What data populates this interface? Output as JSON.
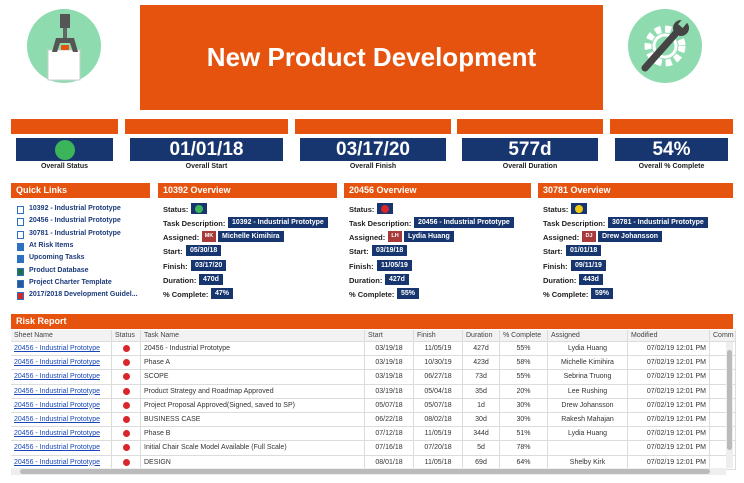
{
  "header": {
    "title": "New Product Development"
  },
  "metrics": [
    {
      "label": "Overall Status",
      "status_color": "#3cb45a"
    },
    {
      "value": "01/01/18",
      "label": "Overall Start"
    },
    {
      "value": "03/17/20",
      "label": "Overall Finish"
    },
    {
      "value": "577d",
      "label": "Overall Duration"
    },
    {
      "value": "54%",
      "label": "Overall % Complete"
    }
  ],
  "quick_links": {
    "title": "Quick Links",
    "items": [
      {
        "text": "10392 - Industrial Prototype",
        "icon": "sheet"
      },
      {
        "text": "20456 - Industrial Prototype",
        "icon": "sheet"
      },
      {
        "text": "30781 - Industrial Prototype",
        "icon": "sheet"
      },
      {
        "text": "At Risk Items",
        "icon": "report"
      },
      {
        "text": "Upcoming Tasks",
        "icon": "report"
      },
      {
        "text": "Product Database",
        "icon": "excel"
      },
      {
        "text": "Project Charter Template",
        "icon": "word"
      },
      {
        "text": "2017/2018 Development Guidel...",
        "icon": "pdf"
      }
    ]
  },
  "overviews": [
    {
      "title": "10392 Overview",
      "status_label": "Status:",
      "status_color": "#3cb45a",
      "fields": [
        {
          "label": "Task Description:",
          "value": "10392 - Industrial Prototype"
        },
        {
          "label": "Assigned:",
          "initials": "MK",
          "value": "Michelle Kimihira"
        },
        {
          "label": "Start:",
          "value": "05/30/18"
        },
        {
          "label": "Finish:",
          "value": "03/17/20"
        },
        {
          "label": "Duration:",
          "value": "470d"
        },
        {
          "label": "% Complete:",
          "value": "47%"
        }
      ]
    },
    {
      "title": "20456 Overview",
      "status_label": "Status:",
      "status_color": "#d8262b",
      "fields": [
        {
          "label": "Task Description:",
          "value": "20456 - Industrial Prototype"
        },
        {
          "label": "Assigned:",
          "initials": "LH",
          "value": "Lydia Huang"
        },
        {
          "label": "Start:",
          "value": "03/19/18"
        },
        {
          "label": "Finish:",
          "value": "11/05/19"
        },
        {
          "label": "Duration:",
          "value": "427d"
        },
        {
          "label": "% Complete:",
          "value": "55%"
        }
      ]
    },
    {
      "title": "30781 Overview",
      "status_label": "Status:",
      "status_color": "#f2c811",
      "fields": [
        {
          "label": "Task Description:",
          "value": "30781 - Industrial Prototype"
        },
        {
          "label": "Assigned:",
          "initials": "DJ",
          "value": "Drew Johansson"
        },
        {
          "label": "Start:",
          "value": "01/01/18"
        },
        {
          "label": "Finish:",
          "value": "09/11/19"
        },
        {
          "label": "Duration:",
          "value": "443d"
        },
        {
          "label": "% Complete:",
          "value": "59%"
        }
      ]
    }
  ],
  "risk_report": {
    "title": "Risk Report",
    "columns": [
      "Sheet Name",
      "Status",
      "Task Name",
      "Start",
      "Finish",
      "Duration",
      "% Complete",
      "Assigned",
      "Modified",
      "Comm"
    ],
    "rows": [
      {
        "sheet": "20456 - Industrial Prototype",
        "task": "20456 - Industrial Prototype",
        "start": "03/19/18",
        "finish": "11/05/19",
        "duration": "427d",
        "complete": "55%",
        "assigned": "Lydia Huang",
        "modified": "07/02/19 12:01 PM"
      },
      {
        "sheet": "20456 - Industrial Prototype",
        "task": "Phase A",
        "start": "03/19/18",
        "finish": "10/30/19",
        "duration": "423d",
        "complete": "58%",
        "assigned": "Michelle Kimihira",
        "modified": "07/02/19 12:01 PM"
      },
      {
        "sheet": "20456 - Industrial Prototype",
        "task": "SCOPE",
        "start": "03/19/18",
        "finish": "06/27/18",
        "duration": "73d",
        "complete": "55%",
        "assigned": "Sebrina Truong",
        "modified": "07/02/19 12:01 PM"
      },
      {
        "sheet": "20456 - Industrial Prototype",
        "task": "Product Strategy and Roadmap Approved",
        "start": "03/19/18",
        "finish": "05/04/18",
        "duration": "35d",
        "complete": "20%",
        "assigned": "Lee Rushing",
        "modified": "07/02/19 12:01 PM"
      },
      {
        "sheet": "20456 - Industrial Prototype",
        "task": "Project Proposal Approved(Signed, saved to SP)",
        "start": "05/07/18",
        "finish": "05/07/18",
        "duration": "1d",
        "complete": "30%",
        "assigned": "Drew Johansson",
        "modified": "07/02/19 12:01 PM"
      },
      {
        "sheet": "20456 - Industrial Prototype",
        "task": "BUSINESS CASE",
        "start": "06/22/18",
        "finish": "08/02/18",
        "duration": "30d",
        "complete": "30%",
        "assigned": "Rakesh Mahajan",
        "modified": "07/02/19 12:01 PM"
      },
      {
        "sheet": "20456 - Industrial Prototype",
        "task": "Phase B",
        "start": "07/12/18",
        "finish": "11/05/19",
        "duration": "344d",
        "complete": "51%",
        "assigned": "Lydia Huang",
        "modified": "07/02/19 12:01 PM"
      },
      {
        "sheet": "20456 - Industrial Prototype",
        "task": "Initial Chair Scale Model Available (Full Scale)",
        "start": "07/16/18",
        "finish": "07/20/18",
        "duration": "5d",
        "complete": "78%",
        "modified": "07/02/19 12:01 PM"
      },
      {
        "sheet": "20456 - Industrial Prototype",
        "task": "DESIGN",
        "start": "08/01/18",
        "finish": "11/05/18",
        "duration": "69d",
        "complete": "64%",
        "assigned": "Shelby Kirk",
        "modified": "07/02/19 12:01 PM"
      }
    ]
  }
}
